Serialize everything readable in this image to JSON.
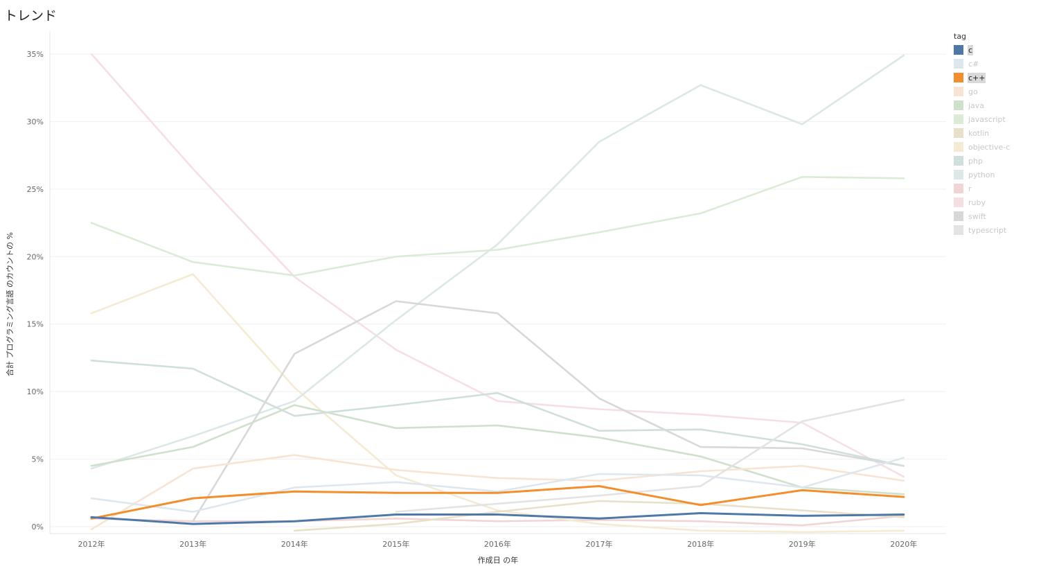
{
  "title": "トレンド",
  "legend": {
    "title": "tag",
    "items": [
      {
        "name": "c",
        "color": "#4e79a7",
        "active": true
      },
      {
        "name": "c#",
        "color": "#dfe7ee",
        "active": false
      },
      {
        "name": "c++",
        "color": "#f28e2b",
        "active": true
      },
      {
        "name": "go",
        "color": "#f7e4d3",
        "active": false
      },
      {
        "name": "java",
        "color": "#cfe0cb",
        "active": false
      },
      {
        "name": "javascript",
        "color": "#dcebd6",
        "active": false
      },
      {
        "name": "kotlin",
        "color": "#e8e0c8",
        "active": false
      },
      {
        "name": "objective-c",
        "color": "#f5ead2",
        "active": false
      },
      {
        "name": "php",
        "color": "#cfe0dc",
        "active": false
      },
      {
        "name": "python",
        "color": "#dbe8e5",
        "active": false
      },
      {
        "name": "r",
        "color": "#f1d4d6",
        "active": false
      },
      {
        "name": "ruby",
        "color": "#f6dfe2",
        "active": false
      },
      {
        "name": "swift",
        "color": "#d8d8d8",
        "active": false
      },
      {
        "name": "typescript",
        "color": "#e3e3e3",
        "active": false
      }
    ]
  },
  "chart_data": {
    "type": "line",
    "xlabel": "作成日 の年",
    "ylabel": "合計 プログラミング言語 のカウントの %",
    "x": [
      "2012年",
      "2013年",
      "2014年",
      "2015年",
      "2016年",
      "2017年",
      "2018年",
      "2019年",
      "2020年"
    ],
    "ylim": [
      0,
      35
    ],
    "yticks": [
      0,
      5,
      10,
      15,
      20,
      25,
      30,
      35
    ],
    "ytick_labels": [
      "0%",
      "5%",
      "10%",
      "15%",
      "20%",
      "25%",
      "30%",
      "35%"
    ],
    "grid": true,
    "legend_position": "right",
    "series": [
      {
        "name": "r",
        "color": "#f1d4d6",
        "highlight": false,
        "values": [
          0.6,
          0.4,
          0.4,
          0.6,
          0.4,
          0.5,
          0.4,
          0.1,
          0.8
        ]
      },
      {
        "name": "ruby",
        "color": "#f6dfe2",
        "highlight": false,
        "values": [
          35.0,
          26.5,
          18.5,
          13.1,
          9.3,
          8.7,
          8.3,
          7.7,
          3.7
        ]
      },
      {
        "name": "objective-c",
        "color": "#f5ead2",
        "highlight": false,
        "values": [
          15.8,
          18.7,
          10.3,
          3.8,
          1.2,
          0.2,
          -0.3,
          -0.4,
          -0.3
        ]
      },
      {
        "name": "javascript",
        "color": "#dcebd6",
        "highlight": false,
        "values": [
          22.5,
          19.6,
          18.6,
          20.0,
          20.5,
          21.8,
          23.2,
          25.9,
          25.8
        ]
      },
      {
        "name": "python",
        "color": "#dbe8e5",
        "highlight": false,
        "values": [
          4.3,
          6.7,
          9.3,
          15.3,
          20.9,
          28.5,
          32.7,
          29.8,
          34.9
        ]
      },
      {
        "name": "swift",
        "color": "#d8d8d8",
        "highlight": false,
        "values": [
          null,
          0.4,
          12.8,
          16.7,
          15.8,
          9.5,
          5.9,
          5.8,
          4.5
        ]
      },
      {
        "name": "php",
        "color": "#cfe0dc",
        "highlight": false,
        "values": [
          12.3,
          11.7,
          8.2,
          9.0,
          9.9,
          7.1,
          7.2,
          6.1,
          4.5
        ]
      },
      {
        "name": "java",
        "color": "#cfe0cb",
        "highlight": false,
        "values": [
          4.5,
          5.9,
          9.0,
          7.3,
          7.5,
          6.6,
          5.2,
          2.9,
          2.4
        ]
      },
      {
        "name": "go",
        "color": "#f7e4d3",
        "highlight": false,
        "values": [
          -0.2,
          4.3,
          5.3,
          4.2,
          3.6,
          3.4,
          4.1,
          4.5,
          3.4
        ]
      },
      {
        "name": "c#",
        "color": "#dfe7ee",
        "highlight": false,
        "values": [
          2.1,
          1.1,
          2.9,
          3.3,
          2.6,
          3.9,
          3.8,
          2.9,
          5.1
        ]
      },
      {
        "name": "typescript",
        "color": "#e3e3e3",
        "highlight": false,
        "values": [
          null,
          null,
          null,
          1.1,
          1.7,
          2.3,
          3.0,
          7.8,
          9.4
        ]
      },
      {
        "name": "kotlin",
        "color": "#e8e0c8",
        "highlight": false,
        "values": [
          null,
          null,
          -0.3,
          0.2,
          1.1,
          1.9,
          1.7,
          1.2,
          0.7
        ]
      },
      {
        "name": "c++",
        "color": "#f28e2b",
        "highlight": true,
        "values": [
          0.6,
          2.1,
          2.6,
          2.5,
          2.5,
          3.0,
          1.6,
          2.7,
          2.2
        ]
      },
      {
        "name": "c",
        "color": "#4e79a7",
        "highlight": true,
        "values": [
          0.7,
          0.2,
          0.4,
          0.9,
          0.9,
          0.6,
          1.0,
          0.8,
          0.9
        ]
      }
    ]
  }
}
